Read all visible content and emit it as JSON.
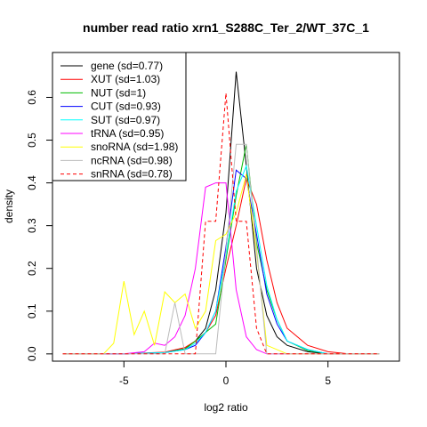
{
  "chart_data": {
    "type": "line",
    "title": "number read ratio xrn1_S288C_Ter_2/WT_37C_1",
    "xlabel": "log2 ratio",
    "ylabel": "density",
    "xlim": [
      -8.5,
      8.5
    ],
    "ylim": [
      -0.017,
      0.705
    ],
    "x_ticks": [
      -5,
      0,
      5
    ],
    "x_tick_labels": [
      "-5",
      "0",
      "5"
    ],
    "y_ticks": [
      0.0,
      0.1,
      0.2,
      0.3,
      0.4,
      0.5,
      0.6
    ],
    "y_tick_labels": [
      "0.0",
      "0.1",
      "0.2",
      "0.3",
      "0.4",
      "0.5",
      "0.6"
    ],
    "legend_position": "top-left",
    "grid": false,
    "series": [
      {
        "name": "gene (sd=0.77)",
        "color": "#000000",
        "dash": "solid",
        "x": [
          -8,
          -5,
          -3,
          -2,
          -1.5,
          -1,
          -0.5,
          0,
          0.5,
          1,
          1.5,
          2,
          2.5,
          3,
          4,
          5,
          6,
          7.5
        ],
        "y": [
          0,
          0,
          0.003,
          0.012,
          0.03,
          0.06,
          0.15,
          0.33,
          0.66,
          0.44,
          0.2,
          0.09,
          0.04,
          0.02,
          0.005,
          0,
          0,
          0
        ]
      },
      {
        "name": "XUT (sd=1.03)",
        "color": "#ff0000",
        "dash": "solid",
        "x": [
          -8,
          -5,
          -3,
          -2,
          -1.5,
          -1,
          -0.5,
          0,
          0.5,
          1,
          1.5,
          2,
          2.5,
          3,
          4,
          5,
          6,
          7.5
        ],
        "y": [
          0,
          0,
          0.004,
          0.015,
          0.03,
          0.05,
          0.09,
          0.2,
          0.3,
          0.41,
          0.35,
          0.22,
          0.12,
          0.06,
          0.02,
          0.005,
          0,
          0
        ]
      },
      {
        "name": "NUT (sd=1)",
        "color": "#00bb00",
        "dash": "solid",
        "x": [
          -8,
          -5,
          -3,
          -2,
          -1.5,
          -1,
          -0.5,
          0,
          0.5,
          1,
          1.5,
          2,
          2.5,
          3,
          4,
          5,
          6,
          7.5
        ],
        "y": [
          0,
          0,
          0.003,
          0.012,
          0.03,
          0.05,
          0.07,
          0.22,
          0.37,
          0.49,
          0.26,
          0.15,
          0.08,
          0.03,
          0.008,
          0,
          0,
          0
        ]
      },
      {
        "name": "CUT (sd=0.93)",
        "color": "#0000ff",
        "dash": "solid",
        "x": [
          -8,
          -5,
          -3,
          -2,
          -1.5,
          -1,
          -0.5,
          0,
          0.5,
          1,
          1.5,
          2,
          2.5,
          3,
          4,
          5,
          6,
          7.5
        ],
        "y": [
          0,
          0,
          0.003,
          0.01,
          0.02,
          0.05,
          0.1,
          0.25,
          0.43,
          0.41,
          0.28,
          0.14,
          0.07,
          0.03,
          0.01,
          0,
          0,
          0
        ]
      },
      {
        "name": "SUT (sd=0.97)",
        "color": "#00ffff",
        "dash": "solid",
        "x": [
          -8,
          -5,
          -3,
          -2,
          -1.5,
          -1,
          -0.5,
          0,
          0.5,
          1,
          1.5,
          2,
          2.5,
          3,
          4,
          5,
          6,
          7.5
        ],
        "y": [
          0,
          0,
          0.003,
          0.01,
          0.025,
          0.05,
          0.1,
          0.23,
          0.38,
          0.44,
          0.3,
          0.16,
          0.08,
          0.03,
          0.01,
          0,
          0,
          0
        ]
      },
      {
        "name": "tRNA (sd=0.95)",
        "color": "#ff00ff",
        "dash": "solid",
        "x": [
          -8,
          -5,
          -4,
          -3.5,
          -3,
          -2.5,
          -2,
          -1.5,
          -1,
          -0.5,
          0,
          0.5,
          1,
          1.5,
          2,
          3,
          5,
          7.5
        ],
        "y": [
          0,
          0,
          0.005,
          0.025,
          0.02,
          0.04,
          0.09,
          0.2,
          0.39,
          0.4,
          0.4,
          0.15,
          0.04,
          0.01,
          0,
          0,
          0,
          0
        ]
      },
      {
        "name": "snoRNA (sd=1.98)",
        "color": "#ffff00",
        "dash": "solid",
        "x": [
          -8,
          -6,
          -5.5,
          -5,
          -4.5,
          -4,
          -3.5,
          -3,
          -2.5,
          -2,
          -1.5,
          -1,
          -0.5,
          0,
          0.5,
          1,
          1.5,
          2,
          3,
          5,
          7.5
        ],
        "y": [
          0,
          0,
          0.025,
          0.17,
          0.045,
          0.1,
          0.02,
          0.145,
          0.12,
          0.14,
          0.06,
          0.1,
          0.265,
          0.28,
          0.33,
          0.42,
          0.24,
          0.02,
          0,
          0,
          0
        ]
      },
      {
        "name": "ncRNA (sd=0.98)",
        "color": "#bbbbbb",
        "dash": "solid",
        "x": [
          -8,
          -4,
          -3,
          -2.5,
          -2,
          -1.5,
          -1,
          -0.5,
          0,
          0.5,
          1,
          1.5,
          2,
          3,
          5,
          7.5
        ],
        "y": [
          0,
          0,
          0,
          0.12,
          0,
          0,
          0,
          0,
          0.24,
          0.49,
          0.49,
          0.25,
          0,
          0,
          0,
          0
        ]
      },
      {
        "name": "snRNA (sd=0.78)",
        "color": "#ff0000",
        "dash": "dashed",
        "x": [
          -8,
          -1.5,
          -1,
          -0.5,
          0,
          0.5,
          1,
          1.5,
          2,
          3,
          5,
          7.5
        ],
        "y": [
          0,
          0,
          0.31,
          0.31,
          0.61,
          0.31,
          0.31,
          0.06,
          0,
          0,
          0,
          0
        ]
      }
    ]
  }
}
